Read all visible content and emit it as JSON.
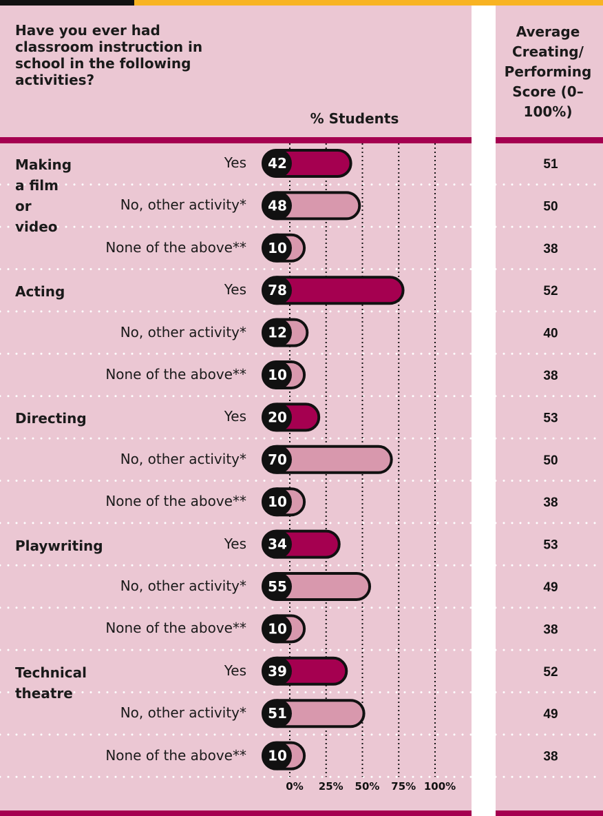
{
  "chart_data": {
    "type": "bar",
    "title": "Have you ever had classroom instruction in school in the following activities?",
    "xlabel": "% Students",
    "score_label": "Average Creating/ Performing Score (0–100%)",
    "xlim": [
      0,
      100
    ],
    "xticks": [
      {
        "value": 0,
        "label": "0%"
      },
      {
        "value": 25,
        "label": "25%"
      },
      {
        "value": 50,
        "label": "50%"
      },
      {
        "value": 75,
        "label": "75%"
      },
      {
        "value": 100,
        "label": "100%"
      }
    ],
    "responses": [
      "Yes",
      "No, other activity*",
      "None of the above**"
    ],
    "colors": [
      "#a50050",
      "#d898ad",
      "#d898ad"
    ],
    "groups": [
      {
        "name": "Making a film or video",
        "values": [
          42,
          48,
          10
        ],
        "scores": [
          51,
          50,
          38
        ]
      },
      {
        "name": "Acting",
        "values": [
          78,
          12,
          10
        ],
        "scores": [
          52,
          40,
          38
        ]
      },
      {
        "name": "Directing",
        "values": [
          20,
          70,
          10
        ],
        "scores": [
          53,
          50,
          38
        ]
      },
      {
        "name": "Playwriting",
        "values": [
          34,
          55,
          10
        ],
        "scores": [
          53,
          49,
          38
        ]
      },
      {
        "name": "Technical theatre",
        "values": [
          39,
          51,
          10
        ],
        "scores": [
          52,
          49,
          38
        ]
      }
    ]
  }
}
